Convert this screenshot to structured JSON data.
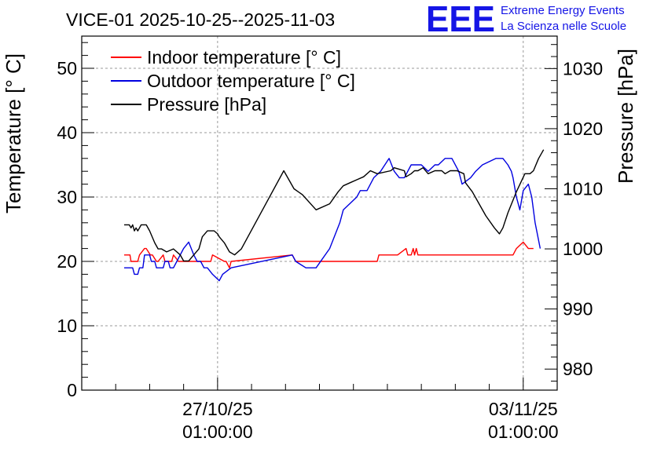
{
  "logo": {
    "mark": "EEE",
    "line1": "Extreme Energy Events",
    "line2": "La Scienza nelle Scuole",
    "color": "#1515e6"
  },
  "chart_data": {
    "type": "line",
    "title": "VICE-01 2025-10-25--2025-11-03",
    "ylabel": "Temperature [° C]",
    "y2label": "Pressure [hPa]",
    "ylim": [
      0,
      55
    ],
    "y2lim": [
      976.5,
      1035.4
    ],
    "xlim": [
      -0.7,
      13.3
    ],
    "grid": true,
    "legend_position": "top-left",
    "yticks": [
      0,
      10,
      20,
      30,
      40,
      50
    ],
    "y2ticks": [
      980,
      990,
      1000,
      1010,
      1020,
      1030
    ],
    "xticks": [
      {
        "x": 3.3,
        "line1": "27/10/25",
        "line2": "01:00:00"
      },
      {
        "x": 12.3,
        "line1": "03/11/25",
        "line2": "01:00:00"
      }
    ],
    "series": [
      {
        "name": "Indoor temperature [° C]",
        "axis": "left",
        "color": "#ff0000",
        "x": [
          0.55,
          0.72,
          0.75,
          0.95,
          1.0,
          1.15,
          1.2,
          1.32,
          1.38,
          1.5,
          1.55,
          1.7,
          1.75,
          1.95,
          2.0,
          2.15,
          2.2,
          2.55,
          2.6,
          3.1,
          3.15,
          3.5,
          3.55,
          3.65,
          3.7,
          5.5,
          5.6,
          8.0,
          8.05,
          8.35,
          8.4,
          8.55,
          8.6,
          8.85,
          8.9,
          8.95,
          9.0,
          9.06,
          9.1,
          9.15,
          9.2,
          12.0,
          12.1,
          12.3,
          12.45,
          12.6
        ],
        "y": [
          21,
          21,
          20,
          20,
          21,
          22,
          22,
          21,
          21,
          20,
          20,
          21,
          20,
          20,
          21,
          20,
          20,
          20,
          20,
          20,
          21,
          20,
          20,
          19,
          20,
          21,
          20,
          20,
          21,
          21,
          21,
          21,
          21,
          22,
          21,
          21,
          21,
          22,
          21,
          22,
          21,
          21,
          22,
          23,
          22,
          22
        ]
      },
      {
        "name": "Outdoor temperature [° C]",
        "axis": "left",
        "color": "#0000e0",
        "x": [
          0.55,
          0.8,
          0.85,
          0.95,
          1.0,
          1.1,
          1.15,
          1.3,
          1.35,
          1.45,
          1.5,
          1.7,
          1.75,
          1.85,
          1.9,
          2.0,
          2.1,
          2.3,
          2.45,
          2.6,
          2.7,
          2.8,
          2.9,
          3.0,
          3.15,
          3.35,
          3.45,
          3.7,
          5.5,
          5.6,
          5.9,
          6.2,
          6.6,
          6.9,
          7.0,
          7.4,
          7.5,
          7.7,
          7.9,
          8.1,
          8.35,
          8.5,
          8.65,
          8.8,
          9.0,
          9.3,
          9.5,
          9.7,
          9.8,
          10.0,
          10.2,
          10.4,
          10.5,
          10.75,
          10.9,
          11.1,
          11.5,
          11.7,
          11.85,
          11.95,
          12.0,
          12.1,
          12.2,
          12.3,
          12.45,
          12.55,
          12.65,
          12.8
        ],
        "y": [
          19,
          19,
          18,
          18,
          19,
          19,
          21,
          21,
          20,
          20,
          19,
          19,
          20,
          20,
          19,
          19,
          20,
          22,
          23,
          21,
          20,
          20,
          19,
          19,
          18,
          17,
          18,
          19,
          21,
          20,
          19,
          19,
          22,
          26,
          28,
          30,
          31,
          31,
          33,
          34,
          36,
          34,
          33,
          33,
          35,
          35,
          34,
          35,
          35,
          36,
          36,
          34,
          32,
          33,
          34,
          35,
          36,
          36,
          35,
          34,
          33,
          30,
          28,
          31,
          32,
          30,
          26,
          22
        ]
      },
      {
        "name": "Pressure [hPa]",
        "axis": "right",
        "color": "#000000",
        "x": [
          0.55,
          0.7,
          0.75,
          0.8,
          0.85,
          0.9,
          0.95,
          1.0,
          1.05,
          1.1,
          1.15,
          1.2,
          1.3,
          1.45,
          1.55,
          1.65,
          1.8,
          2.0,
          2.2,
          2.3,
          2.45,
          2.6,
          2.75,
          2.85,
          3.0,
          3.1,
          3.2,
          3.3,
          3.35,
          3.5,
          3.65,
          3.8,
          4.0,
          5.25,
          5.4,
          5.55,
          5.8,
          6.2,
          6.6,
          6.85,
          7.0,
          7.2,
          7.4,
          7.6,
          7.8,
          8.0,
          8.4,
          8.5,
          8.8,
          8.85,
          9.0,
          9.1,
          9.2,
          9.35,
          9.5,
          9.7,
          9.9,
          10.0,
          10.15,
          10.35,
          10.55,
          10.6,
          10.8,
          11.0,
          11.2,
          11.45,
          11.6,
          11.7,
          11.85,
          12.1,
          12.35,
          12.5,
          12.6,
          12.75,
          12.9
        ],
        "y": [
          1004.0,
          1004.0,
          1003.5,
          1004.0,
          1003.0,
          1003.5,
          1003.0,
          1003.5,
          1004.0,
          1004.0,
          1004.0,
          1004.0,
          1003.0,
          1001.0,
          1000.0,
          1000.0,
          999.5,
          1000.0,
          999.0,
          998.0,
          998.0,
          999.0,
          1000.0,
          1002.0,
          1003.0,
          1003.0,
          1003.0,
          1002.5,
          1002.0,
          1001.0,
          999.5,
          999.0,
          1000.0,
          1013.0,
          1011.5,
          1010.0,
          1009.0,
          1006.5,
          1007.5,
          1009.5,
          1010.5,
          1011.0,
          1011.5,
          1012.0,
          1013.0,
          1012.5,
          1013.0,
          1013.5,
          1013.0,
          1012.0,
          1012.5,
          1013.0,
          1013.0,
          1013.5,
          1012.5,
          1013.0,
          1013.0,
          1012.5,
          1013.0,
          1013.0,
          1012.5,
          1011.0,
          1009.5,
          1007.5,
          1005.5,
          1003.5,
          1002.5,
          1003.5,
          1006.0,
          1009.5,
          1012.5,
          1012.5,
          1013.0,
          1015.0,
          1016.5
        ]
      }
    ]
  }
}
